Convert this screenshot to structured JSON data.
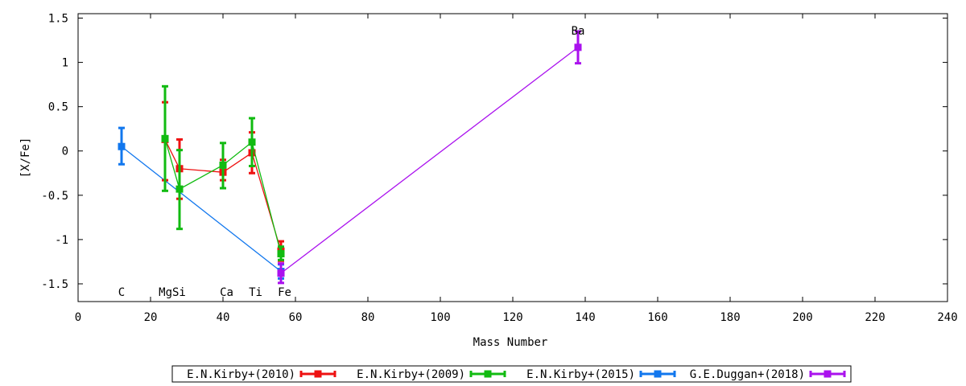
{
  "chart_data": {
    "type": "line",
    "xlabel": "Mass Number",
    "ylabel": "[X/Fe]",
    "xlim": [
      0,
      240
    ],
    "ylim": [
      -1.7,
      1.55
    ],
    "x_ticks": [
      0,
      20,
      40,
      60,
      80,
      100,
      120,
      140,
      160,
      180,
      200,
      220,
      240
    ],
    "y_ticks": [
      -1.5,
      -1,
      -0.5,
      0,
      0.5,
      1,
      1.5
    ],
    "grid": false,
    "legend_placement": "bottom",
    "element_labels": [
      {
        "text": "C",
        "x": 12
      },
      {
        "text": "MgSi",
        "x": 26
      },
      {
        "text": "Ca",
        "x": 41
      },
      {
        "text": "Ti",
        "x": 49
      },
      {
        "text": "Fe",
        "x": 57
      },
      {
        "text": "Ba",
        "x": 138
      }
    ],
    "series": [
      {
        "name": "E.N.Kirby+(2010)",
        "color": "#ee1111",
        "points": [
          {
            "x": 24,
            "y": 0.13,
            "lo": -0.33,
            "hi": 0.55
          },
          {
            "x": 28,
            "y": -0.2,
            "lo": -0.54,
            "hi": 0.13
          },
          {
            "x": 40,
            "y": -0.24,
            "lo": -0.33,
            "hi": -0.1
          },
          {
            "x": 48,
            "y": -0.02,
            "lo": -0.25,
            "hi": 0.21
          },
          {
            "x": 56,
            "y": -1.13,
            "lo": -1.24,
            "hi": -1.02
          }
        ]
      },
      {
        "name": "E.N.Kirby+(2009)",
        "color": "#11bb11",
        "points": [
          {
            "x": 24,
            "y": 0.14,
            "lo": -0.45,
            "hi": 0.73
          },
          {
            "x": 28,
            "y": -0.43,
            "lo": -0.88,
            "hi": 0.01
          },
          {
            "x": 40,
            "y": -0.16,
            "lo": -0.42,
            "hi": 0.09
          },
          {
            "x": 48,
            "y": 0.1,
            "lo": -0.17,
            "hi": 0.37
          },
          {
            "x": 56,
            "y": -1.16,
            "lo": -1.23,
            "hi": -1.08
          }
        ]
      },
      {
        "name": "E.N.Kirby+(2015)",
        "color": "#1177ee",
        "points": [
          {
            "x": 12,
            "y": 0.05,
            "lo": -0.15,
            "hi": 0.26
          },
          {
            "x": 56,
            "y": -1.36,
            "lo": -1.44,
            "hi": -1.28
          }
        ]
      },
      {
        "name": "G.E.Duggan+(2018)",
        "color": "#aa11ee",
        "points": [
          {
            "x": 56,
            "y": -1.38,
            "lo": -1.49,
            "hi": -1.27
          },
          {
            "x": 138,
            "y": 1.17,
            "lo": 0.99,
            "hi": 1.35
          }
        ]
      }
    ]
  }
}
